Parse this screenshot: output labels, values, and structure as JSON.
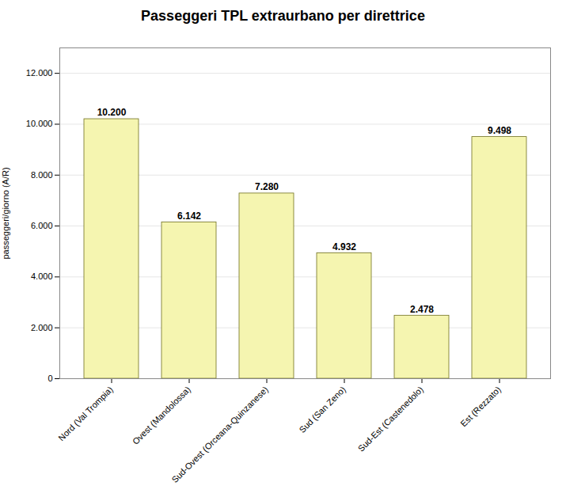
{
  "chart_data": {
    "type": "bar",
    "title": "Passeggeri TPL extraurbano per direttrice",
    "ylabel": "passeggeri/giorno (A/R)",
    "categories": [
      "Nord (Val Trompia)",
      "Ovest (Mandolossa)",
      "Sud-Ovest (Orceana-Quinzanese)",
      "Sud (San Zeno)",
      "Sud-Est (Castenedolo)",
      "Est (Rezzato)"
    ],
    "values": [
      10200,
      6142,
      7280,
      4932,
      2478,
      9498
    ],
    "value_labels": [
      "10.200",
      "6.142",
      "7.280",
      "4.932",
      "2.478",
      "9.498"
    ],
    "data_labels": true,
    "color": "#f5f5b0",
    "ylim": [
      0,
      13000
    ],
    "yticks": [
      0,
      {
        "value": 2000,
        "label": "2.000"
      },
      {
        "value": 4000,
        "label": "4.000"
      },
      {
        "value": 6000,
        "label": "6.000"
      },
      {
        "value": 8000,
        "label": "8.000"
      },
      {
        "value": 10000,
        "label": "10.000"
      },
      {
        "value": 12000,
        "label": "12.000"
      }
    ],
    "grid": true
  }
}
